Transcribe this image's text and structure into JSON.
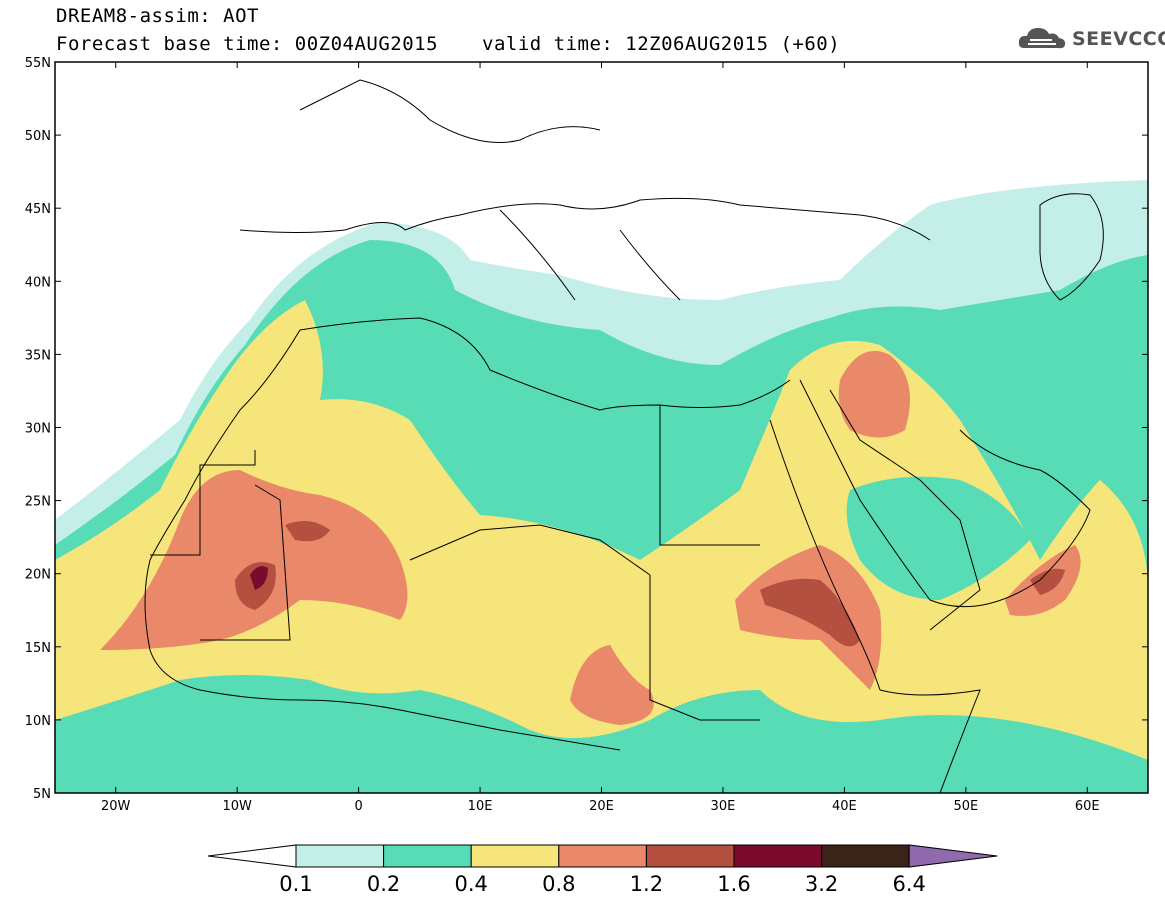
{
  "header": {
    "line1": "DREAM8-assim: AOT",
    "line2": "Forecast base time: 00Z04AUG2015",
    "valid": "valid time: 12Z06AUG2015 (+60)"
  },
  "logo": {
    "text": "SEEVCCC",
    "icon": "cloud-icon"
  },
  "map": {
    "lat_labels": [
      "55N",
      "50N",
      "45N",
      "40N",
      "35N",
      "30N",
      "25N",
      "20N",
      "15N",
      "10N",
      "5N"
    ],
    "lon_labels": [
      "20W",
      "10W",
      "0",
      "10E",
      "20E",
      "30E",
      "40E",
      "50E",
      "60E"
    ]
  },
  "colorbar": {
    "levels": [
      "0.1",
      "0.2",
      "0.4",
      "0.8",
      "1.2",
      "1.6",
      "3.2",
      "6.4"
    ],
    "colors": [
      "#ffffff",
      "#c3efe8",
      "#57dcb6",
      "#f6e57a",
      "#e9896a",
      "#b3503f",
      "#7a0b2c",
      "#3a2418",
      "#8f6aad"
    ]
  },
  "palette": {
    "land_fill": "#ffffff",
    "border": "#000000"
  }
}
